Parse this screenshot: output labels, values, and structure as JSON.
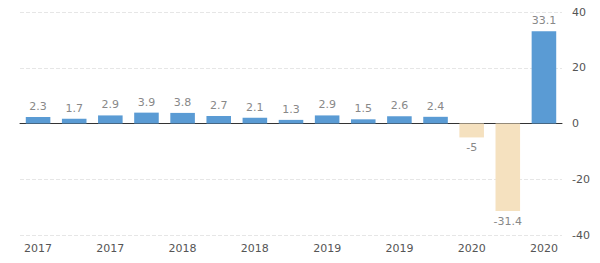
{
  "chart_data": {
    "type": "bar",
    "categories": [
      "2017",
      null,
      "2017",
      null,
      "2018",
      null,
      "2018",
      null,
      "2019",
      null,
      "2019",
      null,
      "2020",
      null,
      "2020"
    ],
    "values": [
      2.3,
      1.7,
      2.9,
      3.9,
      3.8,
      2.7,
      2.1,
      1.3,
      2.9,
      1.5,
      2.6,
      2.4,
      -5,
      -31.4,
      33.1
    ],
    "colors": [
      "#5a9bd4",
      "#5a9bd4",
      "#5a9bd4",
      "#5a9bd4",
      "#5a9bd4",
      "#5a9bd4",
      "#5a9bd4",
      "#5a9bd4",
      "#5a9bd4",
      "#5a9bd4",
      "#5a9bd4",
      "#5a9bd4",
      "#f5e1bf",
      "#f5e1bf",
      "#5a9bd4"
    ],
    "ylim": [
      -40,
      40
    ],
    "yticks": [
      -40,
      -20,
      0,
      20,
      40
    ],
    "grid": true,
    "data_labels": true
  }
}
